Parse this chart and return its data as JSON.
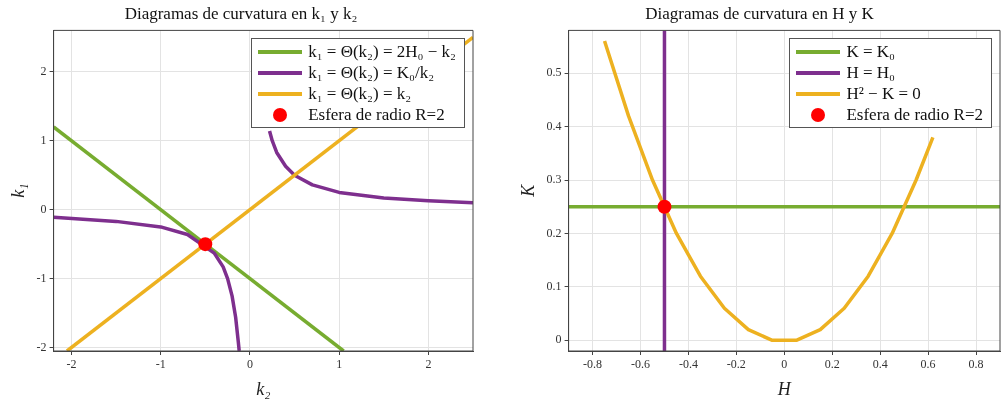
{
  "chart_data": [
    {
      "type": "line",
      "title": "Diagramas de curvatura en k₁ y k₂",
      "xlabel": "k₂",
      "ylabel": "k₁",
      "xlim": [
        -2.2,
        2.5
      ],
      "ylim": [
        -2.05,
        2.6
      ],
      "xticks": [
        -2,
        -1,
        0,
        1,
        2
      ],
      "yticks": [
        -2,
        -1,
        0,
        1,
        2
      ],
      "grid": true,
      "legend": "top right",
      "series": [
        {
          "name": "k₁ = Θ(k₂) = 2H₀ − k₂",
          "color": "#77ac30",
          "x": [
            -2.2,
            1.05
          ],
          "values": [
            1.2,
            -2.05
          ]
        },
        {
          "name": "k₁ = Θ(k₂) = K₀/k₂",
          "color": "#7e2f8e",
          "x": [
            -2.2,
            -1.5,
            -1,
            -0.7,
            -0.4,
            -0.3,
            -0.25,
            -0.2,
            -0.16,
            -0.13,
            -0.12,
            0,
            0.22,
            0.25,
            0.3,
            0.4,
            0.5,
            0.7,
            1,
            1.5,
            2,
            2.5
          ],
          "values": [
            -0.11,
            -0.17,
            -0.25,
            -0.36,
            -0.63,
            -0.83,
            -1,
            -1.25,
            -1.56,
            -1.92,
            -2.05,
            null,
            1.14,
            1,
            0.83,
            0.63,
            0.5,
            0.36,
            0.25,
            0.17,
            0.13,
            0.1
          ]
        },
        {
          "name": "k₁ = Θ(k₂) = k₂",
          "color": "#edb120",
          "x": [
            -2.05,
            2.5
          ],
          "values": [
            -2.05,
            2.5
          ]
        },
        {
          "name": "Esfera de radio R=2",
          "type": "scatter",
          "marker": "circle",
          "color": "#ff0000",
          "x": [
            -0.5
          ],
          "values": [
            -0.5
          ]
        }
      ]
    },
    {
      "type": "line",
      "title": "Diagramas de curvatura en H y K",
      "xlabel": "H",
      "ylabel": "K",
      "xlim": [
        -0.9,
        0.9
      ],
      "ylim": [
        -0.02,
        0.58
      ],
      "xticks": [
        -0.8,
        -0.6,
        -0.4,
        -0.2,
        0,
        0.2,
        0.4,
        0.6,
        0.8
      ],
      "yticks": [
        0,
        0.1,
        0.2,
        0.3,
        0.4,
        0.5
      ],
      "grid": true,
      "legend": "top right",
      "series": [
        {
          "name": "K = K₀",
          "color": "#77ac30",
          "x": [
            -0.9,
            0.9
          ],
          "values": [
            0.25,
            0.25
          ]
        },
        {
          "name": "H = H₀",
          "color": "#7e2f8e",
          "x": [
            -0.5,
            -0.5
          ],
          "values": [
            -0.02,
            0.58
          ]
        },
        {
          "name": "H² − K = 0",
          "color": "#edb120",
          "x": [
            -0.75,
            -0.65,
            -0.55,
            -0.45,
            -0.35,
            -0.25,
            -0.15,
            -0.05,
            0.05,
            0.15,
            0.25,
            0.35,
            0.45,
            0.55,
            0.62
          ],
          "values": [
            0.56,
            0.42,
            0.3,
            0.2,
            0.12,
            0.06,
            0.02,
            0,
            0,
            0.02,
            0.06,
            0.12,
            0.2,
            0.3,
            0.38
          ]
        },
        {
          "name": "Esfera de radio R=2",
          "type": "scatter",
          "marker": "circle",
          "color": "#ff0000",
          "x": [
            -0.5
          ],
          "values": [
            0.25
          ]
        }
      ]
    }
  ]
}
